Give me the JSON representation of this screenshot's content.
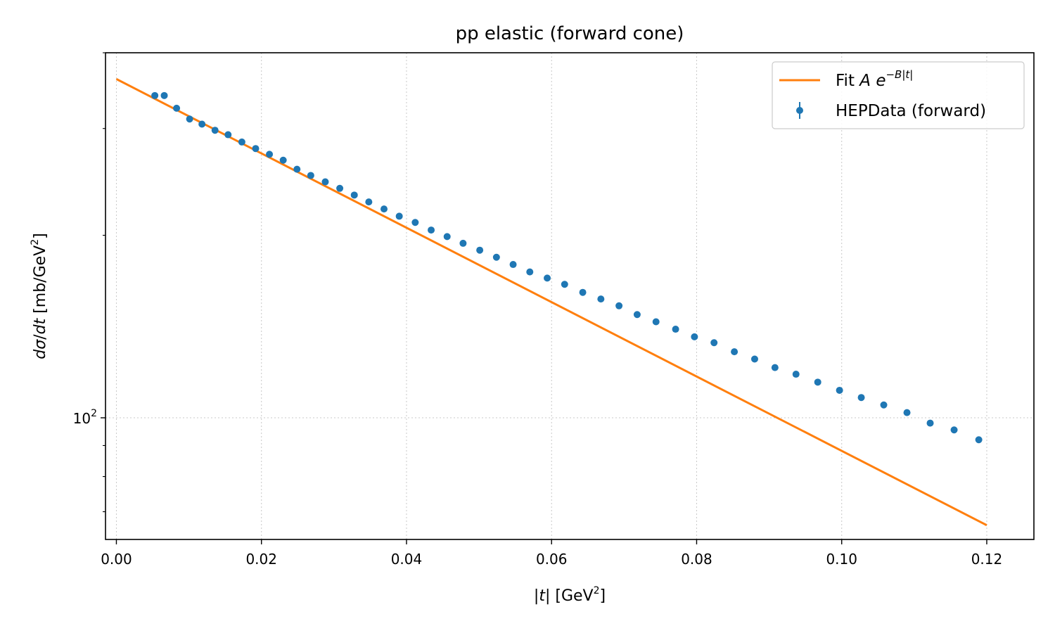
{
  "chart_data": {
    "type": "scatter",
    "title": "pp elastic (forward cone)",
    "xlabel": "|t| [GeV²]",
    "ylabel": "dσ/dt [mb/GeV²]",
    "xlim": [
      -0.0015,
      0.1265
    ],
    "ylim": [
      63.0,
      400.0
    ],
    "yscale": "log",
    "grid": true,
    "legend_position": "top-right",
    "xticks": [
      0.0,
      0.02,
      0.04,
      0.06,
      0.08,
      0.1,
      0.12
    ],
    "xtick_labels": [
      "0.00",
      "0.02",
      "0.04",
      "0.06",
      "0.08",
      "0.10",
      "0.12"
    ],
    "ytick_major_label": {
      "base": "10",
      "exp": "2",
      "value": 100
    },
    "series": [
      {
        "name": "Fit A e^{-B|t|}",
        "type": "line",
        "color": "#ff7f0e",
        "x": [
          0.0,
          0.12
        ],
        "y": [
          362.0,
          66.5
        ]
      },
      {
        "name": "HEPData (forward)",
        "type": "scatter",
        "color": "#1f77b4",
        "x": [
          0.0053,
          0.0066,
          0.0083,
          0.0101,
          0.0118,
          0.0136,
          0.0154,
          0.0173,
          0.0192,
          0.0211,
          0.023,
          0.0249,
          0.0268,
          0.0288,
          0.0308,
          0.0328,
          0.0348,
          0.0369,
          0.039,
          0.0412,
          0.0434,
          0.0456,
          0.0478,
          0.0501,
          0.0524,
          0.0547,
          0.057,
          0.0594,
          0.0618,
          0.0643,
          0.0668,
          0.0693,
          0.0718,
          0.0744,
          0.0771,
          0.0797,
          0.0824,
          0.0852,
          0.088,
          0.0908,
          0.0937,
          0.0967,
          0.0997,
          0.1027,
          0.1058,
          0.109,
          0.1122,
          0.1155,
          0.1189
        ],
        "y": [
          340.0,
          340.0,
          324.0,
          311.0,
          305.0,
          298.0,
          293.0,
          285.0,
          278.0,
          272.0,
          266.0,
          257.0,
          251.0,
          245.0,
          239.0,
          233.0,
          227.0,
          221.0,
          215.0,
          210.0,
          204.0,
          199.0,
          194.0,
          189.0,
          184.0,
          179.0,
          174.0,
          170.0,
          166.0,
          161.0,
          157.0,
          153.0,
          148.0,
          144.0,
          140.0,
          136.0,
          133.0,
          128.5,
          125.0,
          121.0,
          118.0,
          114.5,
          111.0,
          108.0,
          105.0,
          102.0,
          98.0,
          95.5,
          92.0
        ]
      }
    ]
  },
  "legend": {
    "fit_label": "Fit A e^{-B|t|}",
    "data_label": "HEPData (forward)"
  },
  "colors": {
    "fit": "#ff7f0e",
    "data": "#1f77b4",
    "grid": "#b0b0b0"
  }
}
